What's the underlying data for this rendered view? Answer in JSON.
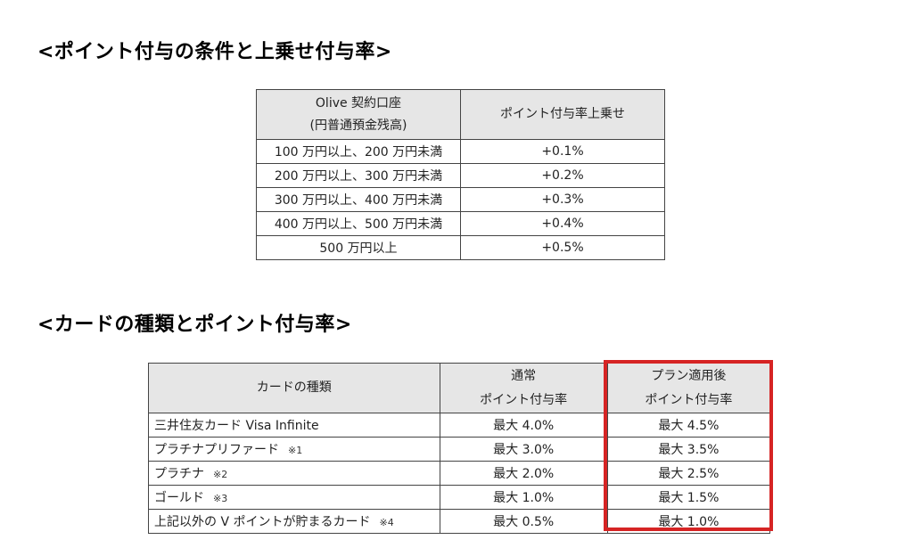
{
  "section1": {
    "heading": "<ポイント付与の条件と上乗せ付与率>",
    "header_col1_line1": "Olive 契約口座",
    "header_col1_line2": "(円普通預金残高)",
    "header_col2": "ポイント付与率上乗せ",
    "rows": [
      {
        "condition": "100 万円以上、200 万円未満",
        "rate": "+0.1%"
      },
      {
        "condition": "200 万円以上、300 万円未満",
        "rate": "+0.2%"
      },
      {
        "condition": "300 万円以上、400 万円未満",
        "rate": "+0.3%"
      },
      {
        "condition": "400 万円以上、500 万円未満",
        "rate": "+0.4%"
      },
      {
        "condition": "500 万円以上",
        "rate": "+0.5%"
      }
    ]
  },
  "section2": {
    "heading": "<カードの種類とポイント付与率>",
    "header_col1": "カードの種類",
    "header_col2_line1": "通常",
    "header_col2_line2": "ポイント付与率",
    "header_col3_line1": "プラン適用後",
    "header_col3_line2": "ポイント付与率",
    "highlight_color": "#d62424",
    "rows": [
      {
        "card": "三井住友カード Visa Infinite",
        "note": "",
        "normal": "最大 4.0%",
        "plan": "最大 4.5%"
      },
      {
        "card": "プラチナプリファード",
        "note": "※1",
        "normal": "最大 3.0%",
        "plan": "最大 3.5%"
      },
      {
        "card": "プラチナ",
        "note": "※2",
        "normal": "最大 2.0%",
        "plan": "最大 2.5%"
      },
      {
        "card": "ゴールド",
        "note": "※3",
        "normal": "最大 1.0%",
        "plan": "最大 1.5%"
      },
      {
        "card": "上記以外の V ポイントが貯まるカード",
        "note": "※4",
        "normal": "最大 0.5%",
        "plan": "最大 1.0%"
      }
    ]
  }
}
